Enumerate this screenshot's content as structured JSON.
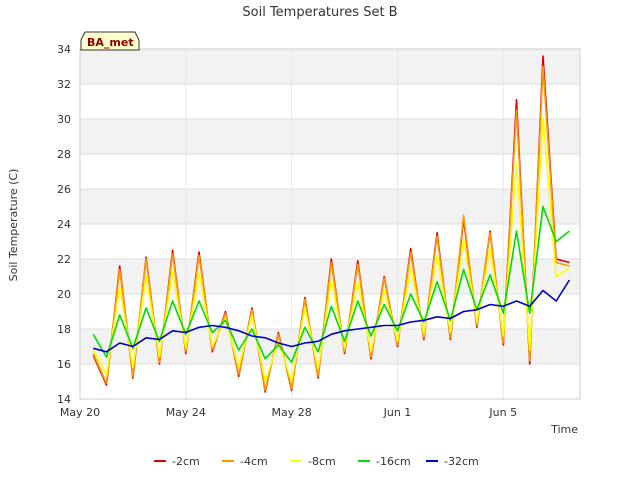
{
  "chart_data": {
    "type": "line",
    "title": "Soil Temperatures Set B",
    "xlabel": "Time",
    "ylabel": "Soil Temperature (C)",
    "station_tag": "BA_met",
    "x_range": [
      "May 20",
      "Jun 7"
    ],
    "x_ticks": [
      "May 20",
      "May 24",
      "May 28",
      "Jun 1",
      "Jun 5"
    ],
    "y_ticks": [
      14,
      16,
      18,
      20,
      22,
      24,
      26,
      28,
      30,
      32,
      34
    ],
    "ylim": [
      14,
      34
    ],
    "grid": true,
    "legend_position": "bottom",
    "x": [
      "May 20",
      "May 20",
      "May 21",
      "May 21",
      "May 22",
      "May 22",
      "May 23",
      "May 23",
      "May 24",
      "May 24",
      "May 25",
      "May 25",
      "May 26",
      "May 26",
      "May 27",
      "May 27",
      "May 28",
      "May 28",
      "May 29",
      "May 29",
      "May 30",
      "May 30",
      "May 31",
      "May 31",
      "Jun 1",
      "Jun 1",
      "Jun 2",
      "Jun 2",
      "Jun 3",
      "Jun 3",
      "Jun 4",
      "Jun 4",
      "Jun 5",
      "Jun 5",
      "Jun 6",
      "Jun 6",
      "Jun 7"
    ],
    "series": [
      {
        "name": "-2cm",
        "color": "#dd0000",
        "values": [
          16.5,
          14.8,
          21.6,
          15.2,
          22.1,
          16.0,
          22.5,
          16.6,
          22.4,
          16.7,
          19.0,
          15.3,
          19.2,
          14.4,
          17.8,
          14.5,
          19.8,
          15.2,
          22.0,
          16.6,
          21.9,
          16.3,
          21.0,
          17.0,
          22.6,
          17.4,
          23.5,
          17.4,
          24.3,
          18.1,
          23.6,
          17.1,
          31.1,
          16.0,
          33.6,
          22.0,
          21.8
        ]
      },
      {
        "name": "-4cm",
        "color": "#ff9900",
        "values": [
          16.6,
          14.9,
          21.4,
          15.3,
          22.0,
          16.1,
          22.3,
          16.7,
          22.2,
          16.8,
          18.9,
          15.4,
          19.1,
          14.5,
          17.7,
          14.6,
          19.7,
          15.3,
          21.8,
          16.7,
          21.7,
          16.4,
          20.9,
          17.1,
          22.4,
          17.5,
          23.3,
          17.5,
          24.5,
          18.2,
          23.5,
          17.2,
          30.5,
          16.2,
          33.0,
          21.8,
          21.6
        ]
      },
      {
        "name": "-8cm",
        "color": "#ffff00",
        "values": [
          16.8,
          15.4,
          20.4,
          15.8,
          21.0,
          16.4,
          21.3,
          16.9,
          21.2,
          17.0,
          18.6,
          15.8,
          18.8,
          15.0,
          17.3,
          15.0,
          19.2,
          15.7,
          20.8,
          16.9,
          20.7,
          16.7,
          20.2,
          17.3,
          21.5,
          17.7,
          22.2,
          17.8,
          23.1,
          18.4,
          22.6,
          17.6,
          27.5,
          16.8,
          30.1,
          21.0,
          21.5
        ]
      },
      {
        "name": "-16cm",
        "color": "#00dd00",
        "values": [
          17.7,
          16.4,
          18.8,
          16.9,
          19.2,
          17.3,
          19.6,
          17.7,
          19.6,
          17.8,
          18.5,
          16.8,
          18.0,
          16.3,
          17.1,
          16.1,
          18.1,
          16.7,
          19.3,
          17.3,
          19.6,
          17.6,
          19.4,
          17.9,
          20.0,
          18.4,
          20.7,
          18.5,
          21.4,
          19.1,
          21.1,
          18.9,
          23.6,
          18.9,
          25.0,
          23.0,
          23.6
        ]
      },
      {
        "name": "-32cm",
        "color": "#0000cc",
        "values": [
          16.9,
          16.7,
          17.2,
          17.0,
          17.5,
          17.4,
          17.9,
          17.8,
          18.1,
          18.2,
          18.1,
          17.9,
          17.6,
          17.5,
          17.2,
          17.0,
          17.2,
          17.3,
          17.7,
          17.9,
          18.0,
          18.1,
          18.2,
          18.2,
          18.4,
          18.5,
          18.7,
          18.6,
          19.0,
          19.1,
          19.4,
          19.3,
          19.6,
          19.3,
          20.2,
          19.6,
          20.8
        ]
      }
    ]
  }
}
